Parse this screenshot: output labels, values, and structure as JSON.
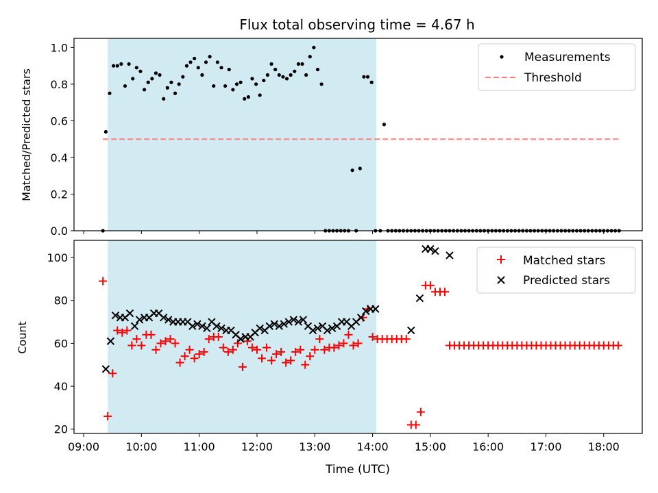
{
  "figure": {
    "title": "Flux total observing time = 4.67 h",
    "xlabel": "Time (UTC)"
  },
  "colors": {
    "measurement": "#000000",
    "threshold": "#ff7f7f",
    "matched": "#ff0000",
    "predicted": "#000000",
    "span": "#add8e6"
  },
  "chart_data": [
    {
      "type": "scatter",
      "ylabel": "Matched/Predicted stars",
      "xlim": [
        "08:50",
        "18:40"
      ],
      "ylim": [
        0,
        1.05
      ],
      "yticks": [
        "0.0",
        "0.2",
        "0.4",
        "0.6",
        "0.8",
        "1.0"
      ],
      "grid": false,
      "legend_position": "top-right",
      "shaded_span": [
        "09:25",
        "14:04"
      ],
      "threshold": {
        "name": "Threshold",
        "y": 0.5,
        "x": [
          "09:20",
          "18:17"
        ]
      },
      "series": [
        {
          "name": "Measurements",
          "x": [
            "09:20",
            "09:23",
            "09:27",
            "09:31",
            "09:35",
            "09:39",
            "09:43",
            "09:47",
            "09:51",
            "09:55",
            "09:59",
            "10:03",
            "10:07",
            "10:11",
            "10:15",
            "10:19",
            "10:23",
            "10:27",
            "10:31",
            "10:35",
            "10:39",
            "10:43",
            "10:47",
            "10:51",
            "10:55",
            "10:59",
            "11:03",
            "11:07",
            "11:11",
            "11:15",
            "11:19",
            "11:23",
            "11:27",
            "11:31",
            "11:35",
            "11:39",
            "11:43",
            "11:47",
            "11:51",
            "11:55",
            "11:59",
            "12:03",
            "12:07",
            "12:11",
            "12:15",
            "12:19",
            "12:23",
            "12:27",
            "12:31",
            "12:35",
            "12:39",
            "12:43",
            "12:47",
            "12:51",
            "12:55",
            "12:59",
            "13:03",
            "13:07",
            "13:11",
            "13:15",
            "13:19",
            "13:23",
            "13:27",
            "13:31",
            "13:35",
            "13:39",
            "13:43",
            "13:47",
            "13:51",
            "13:55",
            "13:59",
            "14:03",
            "14:08",
            "14:12",
            "14:16",
            "14:20",
            "14:24",
            "14:28",
            "14:32",
            "14:36",
            "14:40",
            "14:44",
            "14:48",
            "14:52",
            "14:56",
            "15:00",
            "15:04",
            "15:08",
            "15:12",
            "15:16",
            "15:20",
            "15:24",
            "15:28",
            "15:32",
            "15:36",
            "15:40",
            "15:44",
            "15:48",
            "15:52",
            "15:56",
            "16:00",
            "16:04",
            "16:08",
            "16:12",
            "16:16",
            "16:20",
            "16:24",
            "16:28",
            "16:32",
            "16:36",
            "16:40",
            "16:44",
            "16:48",
            "16:52",
            "16:56",
            "17:00",
            "17:04",
            "17:08",
            "17:12",
            "17:16",
            "17:20",
            "17:24",
            "17:28",
            "17:32",
            "17:36",
            "17:40",
            "17:44",
            "17:48",
            "17:52",
            "17:56",
            "18:00",
            "18:04",
            "18:08",
            "18:12",
            "18:16"
          ],
          "y": [
            0.0,
            0.54,
            0.75,
            0.9,
            0.9,
            0.91,
            0.79,
            0.91,
            0.83,
            0.89,
            0.87,
            0.77,
            0.81,
            0.83,
            0.86,
            0.85,
            0.72,
            0.78,
            0.81,
            0.75,
            0.8,
            0.84,
            0.9,
            0.92,
            0.94,
            0.89,
            0.85,
            0.92,
            0.95,
            0.79,
            0.92,
            0.89,
            0.79,
            0.88,
            0.77,
            0.8,
            0.81,
            0.72,
            0.73,
            0.83,
            0.8,
            0.74,
            0.82,
            0.85,
            0.91,
            0.88,
            0.85,
            0.84,
            0.83,
            0.85,
            0.87,
            0.91,
            0.91,
            0.85,
            0.95,
            1.0,
            0.88,
            0.8,
            0.0,
            0.0,
            0.0,
            0.0,
            0.0,
            0.0,
            0.0,
            0.33,
            0.0,
            0.34,
            0.84,
            0.84,
            0.81,
            0.0,
            0.0,
            0.58,
            0.0,
            0.0,
            0.0,
            0.0,
            0.0,
            0.0,
            0.0,
            0.0,
            0.0,
            0.0,
            0.0,
            0.0,
            0.0,
            0.0,
            0.0,
            0.0,
            0.0,
            0.0,
            0.0,
            0.0,
            0.0,
            0.0,
            0.0,
            0.0,
            0.0,
            0.0,
            0.0,
            0.0,
            0.0,
            0.0,
            0.0,
            0.0,
            0.0,
            0.0,
            0.0,
            0.0,
            0.0,
            0.0,
            0.0,
            0.0,
            0.0,
            0.0,
            0.0,
            0.0,
            0.0,
            0.0,
            0.0,
            0.0,
            0.0,
            0.0,
            0.0,
            0.0,
            0.0,
            0.0,
            0.0,
            0.0,
            0.0,
            0.0,
            0.0,
            0.0,
            0.0
          ]
        }
      ]
    },
    {
      "type": "scatter",
      "ylabel": "Count",
      "xlabel": "Time (UTC)",
      "xlim": [
        "08:50",
        "18:40"
      ],
      "ylim": [
        18,
        108
      ],
      "yticks": [
        "20",
        "40",
        "60",
        "80",
        "100"
      ],
      "xticks": [
        "09:00",
        "10:00",
        "11:00",
        "12:00",
        "13:00",
        "14:00",
        "15:00",
        "16:00",
        "17:00",
        "18:00"
      ],
      "grid": false,
      "legend_position": "top-right",
      "shaded_span": [
        "09:25",
        "14:04"
      ],
      "series": [
        {
          "name": "Matched stars",
          "marker": "+",
          "x": [
            "09:20",
            "09:25",
            "09:30",
            "09:35",
            "09:40",
            "09:45",
            "09:50",
            "09:55",
            "10:00",
            "10:05",
            "10:10",
            "10:15",
            "10:20",
            "10:25",
            "10:30",
            "10:35",
            "10:40",
            "10:45",
            "10:50",
            "10:55",
            "11:00",
            "11:05",
            "11:10",
            "11:15",
            "11:20",
            "11:25",
            "11:30",
            "11:35",
            "11:40",
            "11:45",
            "11:50",
            "11:55",
            "12:00",
            "12:05",
            "12:10",
            "12:15",
            "12:20",
            "12:25",
            "12:30",
            "12:35",
            "12:40",
            "12:45",
            "12:50",
            "12:55",
            "13:00",
            "13:05",
            "13:10",
            "13:15",
            "13:20",
            "13:25",
            "13:30",
            "13:35",
            "13:40",
            "13:45",
            "13:50",
            "13:55",
            "14:00",
            "14:05",
            "14:10",
            "14:15",
            "14:20",
            "14:25",
            "14:30",
            "14:35",
            "14:40",
            "14:45",
            "14:50",
            "14:55",
            "15:00",
            "15:05",
            "15:10",
            "15:15",
            "15:20",
            "15:25",
            "15:30",
            "15:35",
            "15:40",
            "15:45",
            "15:50",
            "15:55",
            "16:00",
            "16:05",
            "16:10",
            "16:15",
            "16:20",
            "16:25",
            "16:30",
            "16:35",
            "16:40",
            "16:45",
            "16:50",
            "16:55",
            "17:00",
            "17:05",
            "17:10",
            "17:15",
            "17:20",
            "17:25",
            "17:30",
            "17:35",
            "17:40",
            "17:45",
            "17:50",
            "17:55",
            "18:00",
            "18:05",
            "18:10",
            "18:15"
          ],
          "y": [
            89,
            26,
            46,
            66,
            65,
            66,
            59,
            62,
            59,
            64,
            64,
            57,
            60,
            61,
            62,
            60,
            51,
            54,
            57,
            53,
            55,
            56,
            62,
            63,
            63,
            58,
            56,
            57,
            60,
            49,
            61,
            58,
            57,
            53,
            58,
            52,
            55,
            56,
            51,
            52,
            56,
            57,
            50,
            54,
            57,
            62,
            57,
            58,
            58,
            59,
            60,
            64,
            59,
            60,
            72,
            76,
            63,
            62,
            62,
            62,
            62,
            62,
            62,
            62,
            22,
            22,
            28,
            87,
            87,
            84,
            84,
            84,
            59,
            59,
            59,
            59,
            59,
            59,
            59,
            59,
            59,
            59,
            59,
            59,
            59,
            59,
            59,
            59,
            59,
            59,
            59,
            59,
            59,
            59,
            59,
            59,
            59,
            59,
            59,
            59,
            59,
            59,
            59,
            59,
            59,
            59,
            59,
            59
          ]
        },
        {
          "name": "Predicted stars",
          "marker": "x",
          "x": [
            "09:23",
            "09:28",
            "09:33",
            "09:38",
            "09:43",
            "09:48",
            "09:53",
            "09:58",
            "10:03",
            "10:08",
            "10:13",
            "10:18",
            "10:23",
            "10:28",
            "10:33",
            "10:38",
            "10:43",
            "10:48",
            "10:53",
            "10:58",
            "11:03",
            "11:08",
            "11:13",
            "11:18",
            "11:23",
            "11:28",
            "11:33",
            "11:38",
            "11:43",
            "11:48",
            "11:53",
            "11:58",
            "12:03",
            "12:08",
            "12:13",
            "12:18",
            "12:23",
            "12:28",
            "12:33",
            "12:38",
            "12:43",
            "12:48",
            "12:53",
            "12:58",
            "13:03",
            "13:08",
            "13:13",
            "13:18",
            "13:23",
            "13:28",
            "13:33",
            "13:38",
            "13:43",
            "13:48",
            "13:53",
            "13:58",
            "14:03",
            "14:40",
            "14:49",
            "14:55",
            "15:00",
            "15:05",
            "15:20"
          ],
          "y": [
            48,
            61,
            73,
            72,
            72,
            74,
            68,
            71,
            72,
            72,
            74,
            74,
            72,
            71,
            70,
            70,
            70,
            70,
            68,
            69,
            68,
            67,
            70,
            68,
            67,
            66,
            66,
            64,
            62,
            63,
            63,
            65,
            67,
            66,
            68,
            69,
            68,
            69,
            70,
            71,
            70,
            71,
            68,
            66,
            67,
            68,
            66,
            67,
            68,
            70,
            70,
            68,
            70,
            72,
            75,
            76,
            76,
            66,
            81,
            104,
            104,
            103,
            101
          ]
        }
      ]
    }
  ]
}
